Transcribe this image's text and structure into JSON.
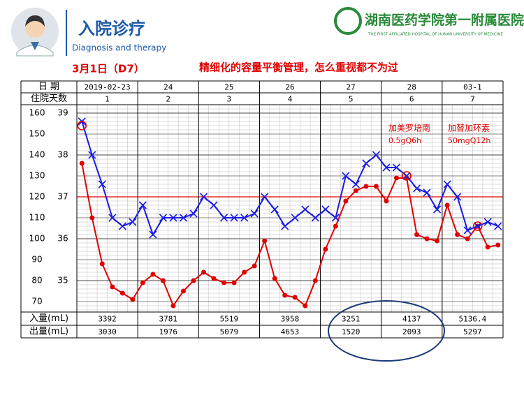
{
  "header": {
    "title": "入院诊疗",
    "subtitle": "Diagnosis and therapy",
    "hospital": "湖南医药学院第一附属医院",
    "hospital_en": "THE FIRST AFFILIATED HOSPITAL OF HUNAN UNIVERSITY OF MEDICINE"
  },
  "slide_date": "3月1日（D7）",
  "slide_title": "精细化的容量平衡管理，怎么重视都不为过",
  "table": {
    "date_label": "日  期",
    "dates": [
      "2019-02-23",
      "24",
      "25",
      "26",
      "27",
      "28",
      "03-1"
    ],
    "day_label": "住院天数",
    "days": [
      1,
      2,
      3,
      4,
      5,
      6,
      7
    ],
    "intake_label": "入量(mL)",
    "intake": [
      3392,
      3781,
      5519,
      3958,
      3251,
      4137,
      5136.4
    ],
    "output_label": "出量(mL)",
    "output": [
      3030,
      1976,
      5079,
      4653,
      1520,
      2093,
      5297
    ]
  },
  "chart_data": {
    "type": "line",
    "ylim": [
      65,
      164
    ],
    "yticks": [
      70,
      80,
      90,
      100,
      110,
      120,
      130,
      140,
      150,
      160
    ],
    "y2lim": [
      34.25,
      39.2
    ],
    "y2ticks": [
      35,
      36,
      37,
      38,
      39
    ],
    "reference_line": {
      "axis": "y2",
      "value": 37,
      "color": "#e00000"
    },
    "series": [
      {
        "color": "#e00000",
        "marker": "dot",
        "values": [
          136,
          110,
          88,
          77,
          74,
          71,
          79,
          83,
          80,
          68,
          75,
          80,
          84,
          81,
          79,
          79,
          84,
          87,
          99,
          81,
          73,
          72,
          68,
          80,
          95,
          106,
          118,
          123,
          125,
          125,
          118,
          129,
          129,
          102,
          100,
          99,
          116,
          102,
          100,
          106,
          96,
          97
        ]
      },
      {
        "color": "#1a1ae6",
        "marker": "x",
        "axis": "y2",
        "values": [
          38.8,
          38.0,
          37.3,
          36.5,
          36.3,
          36.4,
          36.8,
          36.1,
          36.5,
          36.5,
          36.5,
          36.6,
          37.0,
          36.8,
          36.5,
          36.5,
          36.5,
          36.6,
          37.0,
          36.7,
          36.3,
          36.5,
          36.7,
          36.5,
          36.7,
          36.5,
          37.5,
          37.3,
          37.8,
          38.0,
          37.7,
          37.7,
          37.5,
          37.2,
          37.1,
          36.7,
          37.3,
          37.0,
          36.2,
          36.3,
          36.4,
          36.3
        ]
      },
      {
        "color": "#e00000",
        "marker": "circle-open",
        "axis": "y2",
        "values": [
          38.7,
          null,
          null,
          null,
          null,
          null,
          null,
          null,
          null,
          null,
          null,
          null,
          null,
          null,
          null,
          null,
          null,
          null,
          null,
          null,
          null,
          null,
          null,
          null,
          null,
          null,
          null,
          null,
          null,
          null,
          null,
          null,
          37.5,
          null,
          null,
          null,
          null,
          null,
          null,
          36.3,
          null,
          null
        ]
      }
    ],
    "annotations": [
      {
        "drug": "加美罗培南",
        "dose": "0.5gQ6h"
      },
      {
        "drug": "加替加环素",
        "dose": "50mgQ12h"
      }
    ]
  }
}
